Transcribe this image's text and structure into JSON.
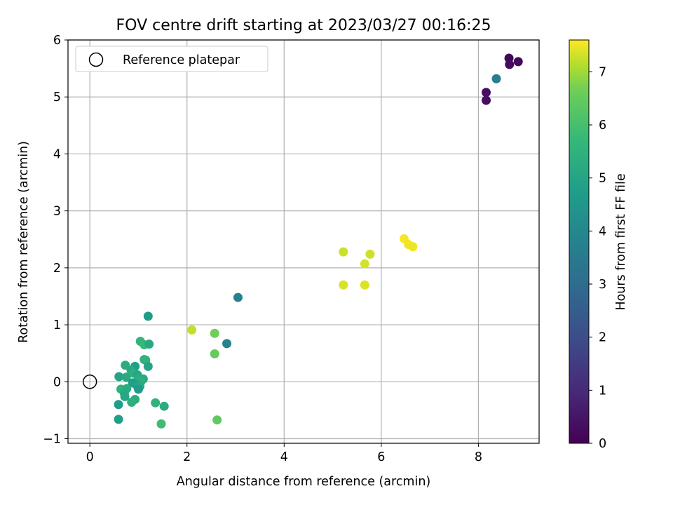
{
  "chart_data": {
    "type": "scatter",
    "title": "FOV centre drift starting at 2023/03/27 00:16:25",
    "xlabel": "Angular distance from reference (arcmin)",
    "ylabel": "Rotation from reference (arcmin)",
    "xlim": [
      -0.45,
      9.25
    ],
    "ylim": [
      -1.08,
      6.0
    ],
    "xticks": [
      0,
      2,
      4,
      6,
      8
    ],
    "yticks": [
      -1,
      0,
      1,
      2,
      3,
      4,
      5,
      6
    ],
    "grid": true,
    "legend": {
      "position": "top-left",
      "entries": [
        "Reference platepar"
      ]
    },
    "reference_point": {
      "x": 0,
      "y": 0
    },
    "colorbar": {
      "label": "Hours from first FF file",
      "range": [
        0,
        7.6
      ],
      "ticks": [
        0,
        1,
        2,
        3,
        4,
        5,
        6,
        7
      ],
      "colormap": "viridis"
    },
    "points": [
      {
        "x": 8.63,
        "y": 5.68,
        "c": 0.1
      },
      {
        "x": 8.82,
        "y": 5.62,
        "c": 0.15
      },
      {
        "x": 8.64,
        "y": 5.57,
        "c": 0.2
      },
      {
        "x": 8.16,
        "y": 5.08,
        "c": 0.25
      },
      {
        "x": 8.16,
        "y": 4.94,
        "c": 0.3
      },
      {
        "x": 8.37,
        "y": 5.32,
        "c": 3.2
      },
      {
        "x": 3.05,
        "y": 1.48,
        "c": 3.3
      },
      {
        "x": 2.82,
        "y": 0.67,
        "c": 3.4
      },
      {
        "x": 6.47,
        "y": 2.51,
        "c": 7.5
      },
      {
        "x": 6.56,
        "y": 2.41,
        "c": 7.45
      },
      {
        "x": 6.65,
        "y": 2.37,
        "c": 7.4
      },
      {
        "x": 5.22,
        "y": 2.28,
        "c": 7.0
      },
      {
        "x": 5.77,
        "y": 2.24,
        "c": 7.05
      },
      {
        "x": 5.66,
        "y": 2.07,
        "c": 7.1
      },
      {
        "x": 5.22,
        "y": 1.7,
        "c": 7.15
      },
      {
        "x": 5.66,
        "y": 1.7,
        "c": 7.2
      },
      {
        "x": 2.1,
        "y": 0.91,
        "c": 6.9
      },
      {
        "x": 2.57,
        "y": 0.85,
        "c": 5.9
      },
      {
        "x": 2.57,
        "y": 0.49,
        "c": 5.8
      },
      {
        "x": 2.62,
        "y": -0.67,
        "c": 5.7
      },
      {
        "x": 1.2,
        "y": 1.15,
        "c": 4.2
      },
      {
        "x": 1.04,
        "y": 0.71,
        "c": 5.0
      },
      {
        "x": 1.12,
        "y": 0.65,
        "c": 5.1
      },
      {
        "x": 1.22,
        "y": 0.66,
        "c": 4.6
      },
      {
        "x": 1.12,
        "y": 0.39,
        "c": 4.8
      },
      {
        "x": 1.15,
        "y": 0.38,
        "c": 4.9
      },
      {
        "x": 0.73,
        "y": 0.29,
        "c": 4.7
      },
      {
        "x": 0.93,
        "y": 0.27,
        "c": 4.3
      },
      {
        "x": 1.2,
        "y": 0.27,
        "c": 4.4
      },
      {
        "x": 0.85,
        "y": 0.2,
        "c": 4.6
      },
      {
        "x": 0.9,
        "y": 0.15,
        "c": 4.8
      },
      {
        "x": 0.98,
        "y": 0.12,
        "c": 4.5
      },
      {
        "x": 0.6,
        "y": 0.09,
        "c": 4.4
      },
      {
        "x": 0.75,
        "y": 0.08,
        "c": 4.6
      },
      {
        "x": 1.0,
        "y": 0.05,
        "c": 4.7
      },
      {
        "x": 1.1,
        "y": 0.05,
        "c": 4.6
      },
      {
        "x": 1.05,
        "y": 0.0,
        "c": 4.8
      },
      {
        "x": 0.88,
        "y": -0.02,
        "c": 4.2
      },
      {
        "x": 0.95,
        "y": -0.05,
        "c": 4.3
      },
      {
        "x": 1.03,
        "y": -0.08,
        "c": 4.6
      },
      {
        "x": 1.0,
        "y": -0.13,
        "c": 4.1
      },
      {
        "x": 0.64,
        "y": -0.13,
        "c": 4.9
      },
      {
        "x": 0.76,
        "y": -0.12,
        "c": 4.7
      },
      {
        "x": 0.71,
        "y": -0.2,
        "c": 4.6
      },
      {
        "x": 0.72,
        "y": -0.26,
        "c": 4.5
      },
      {
        "x": 0.93,
        "y": -0.31,
        "c": 4.7
      },
      {
        "x": 0.86,
        "y": -0.36,
        "c": 4.8
      },
      {
        "x": 1.35,
        "y": -0.37,
        "c": 4.9
      },
      {
        "x": 0.59,
        "y": -0.4,
        "c": 4.2
      },
      {
        "x": 1.53,
        "y": -0.43,
        "c": 4.7
      },
      {
        "x": 0.59,
        "y": -0.66,
        "c": 4.3
      },
      {
        "x": 1.47,
        "y": -0.74,
        "c": 5.2
      }
    ]
  }
}
